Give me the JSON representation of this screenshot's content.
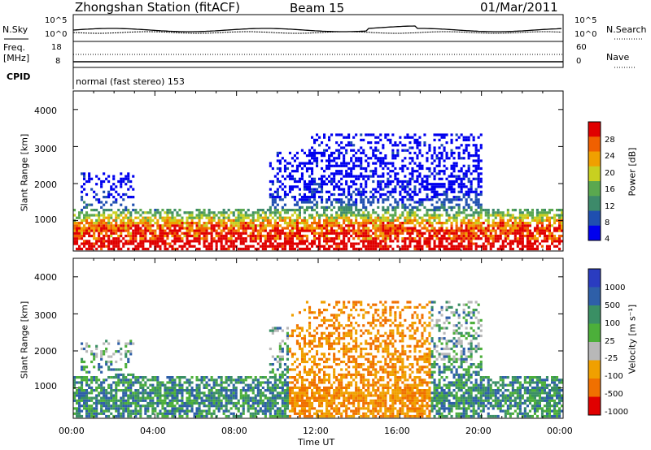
{
  "header": {
    "station": "Zhongshan Station (fitACF)",
    "beam": "Beam 15",
    "date": "01/Mar/2011"
  },
  "status_panels": {
    "nsky_label": "N.Sky",
    "nsky_ticks": [
      "10^5",
      "10^0"
    ],
    "nsearch_label": "N.Search",
    "nsearch_ticks": [
      "10^5",
      "10^0"
    ],
    "freq_label": "Freq.",
    "freq_unit": "[MHz]",
    "freq_ticks": [
      "18",
      "8"
    ],
    "nave_label": "Nave",
    "nave_ticks": [
      "60",
      "0"
    ],
    "cpid_label": "CPID",
    "cpid_text": "normal (fast stereo) 153"
  },
  "colors": {
    "power_scale": [
      "#0000ee",
      "#1f4fb0",
      "#3d8a6a",
      "#5aa84f",
      "#c8d020",
      "#f0a000",
      "#f06000",
      "#e00000"
    ],
    "velocity_scale": [
      "#2a3cc0",
      "#2e5fa8",
      "#3a8f64",
      "#4caf3a",
      "#b8b8b8",
      "#f0a000",
      "#f07000",
      "#e00000"
    ]
  },
  "chart_data": [
    {
      "type": "heatmap",
      "ylabel": "Slant Range [km]",
      "yticks": [
        "1000",
        "2000",
        "3000",
        "4000"
      ],
      "ylim": [
        180,
        4500
      ],
      "xlim": [
        "00:00",
        "24:00"
      ],
      "colorbar_label": "Power [dB]",
      "colorbar_ticks": [
        "4",
        "8",
        "12",
        "16",
        "20",
        "24",
        "28"
      ],
      "value_range": [
        0,
        30
      ]
    },
    {
      "type": "heatmap",
      "ylabel": "Slant Range [km]",
      "yticks": [
        "1000",
        "2000",
        "3000",
        "4000"
      ],
      "ylim": [
        180,
        4500
      ],
      "xlim": [
        "00:00",
        "24:00"
      ],
      "colorbar_label": "Velocity [m s⁻¹]",
      "colorbar_ticks": [
        "1000",
        "500",
        "100",
        "25",
        "-25",
        "-100",
        "-500",
        "-1000"
      ],
      "value_range": [
        -1000,
        1000
      ]
    }
  ],
  "xaxis": {
    "ticks": [
      "00:00",
      "04:00",
      "08:00",
      "12:00",
      "16:00",
      "20:00",
      "00:00"
    ],
    "label": "Time UT"
  }
}
